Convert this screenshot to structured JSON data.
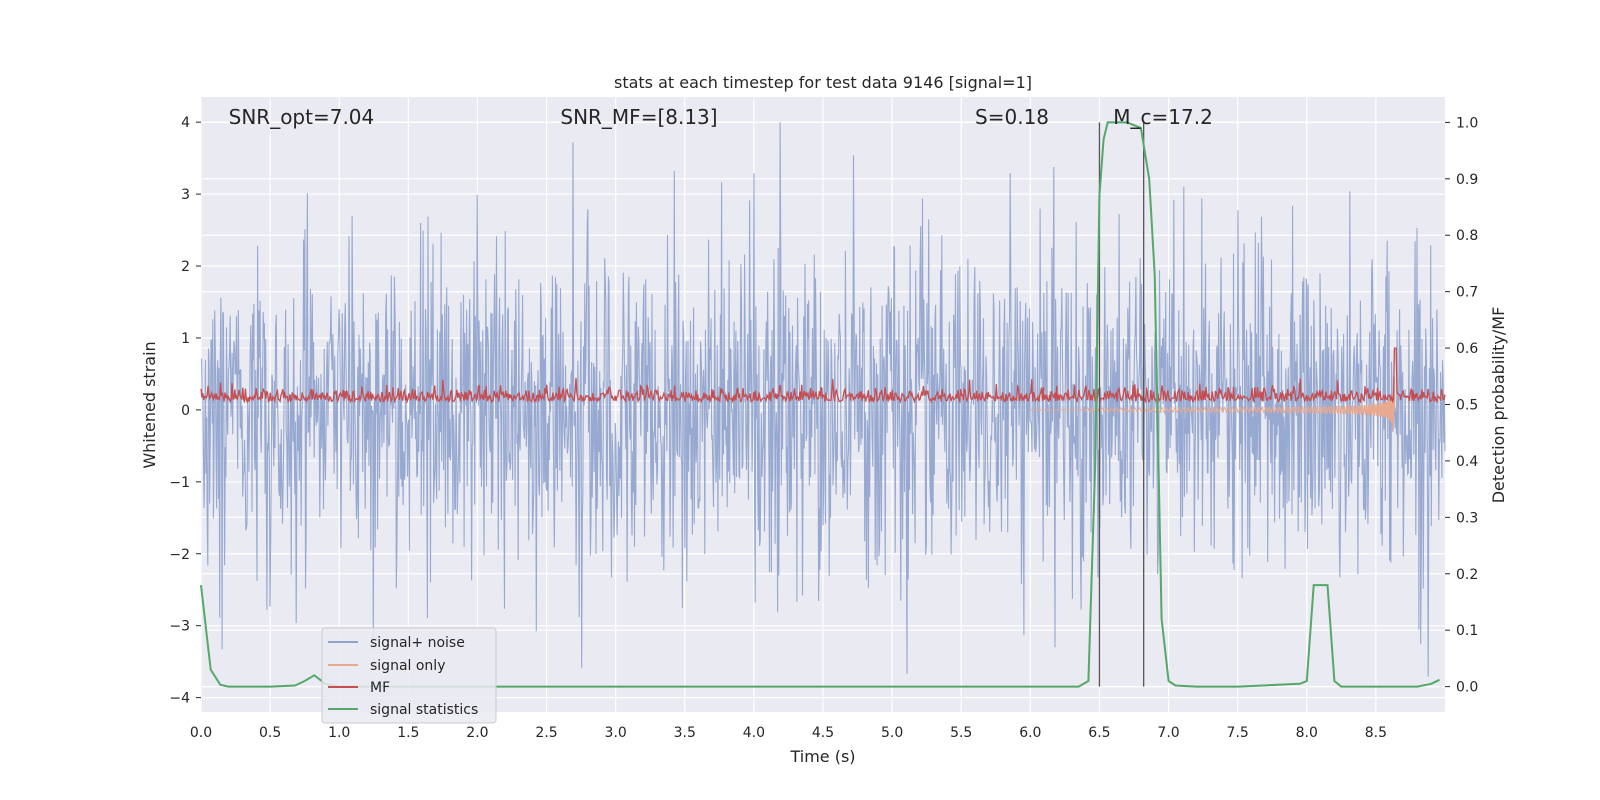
{
  "chart_data": {
    "type": "line",
    "title": "stats at each timestep for test data 9146 [signal=1]",
    "xlabel": "Time (s)",
    "ylabel_left": "Whitened strain",
    "ylabel_right": "Detection probability/MF",
    "xlim": [
      0.0,
      9.0
    ],
    "ylim_left": [
      -4.2,
      4.35
    ],
    "ylim_right": [
      -0.045,
      1.045
    ],
    "x_ticks": [
      0.0,
      0.5,
      1.0,
      1.5,
      2.0,
      2.5,
      3.0,
      3.5,
      4.0,
      4.5,
      5.0,
      5.5,
      6.0,
      6.5,
      7.0,
      7.5,
      8.0,
      8.5
    ],
    "x_tick_labels": [
      "0.0",
      "0.5",
      "1.0",
      "1.5",
      "2.0",
      "2.5",
      "3.0",
      "3.5",
      "4.0",
      "4.5",
      "5.0",
      "5.5",
      "6.0",
      "6.5",
      "7.0",
      "7.5",
      "8.0",
      "8.5"
    ],
    "y_left_ticks": [
      4,
      3,
      2,
      1,
      0,
      -1,
      -2,
      -3,
      -4
    ],
    "y_left_tick_labels": [
      "4",
      "3",
      "2",
      "1",
      "0",
      "−1",
      "−2",
      "−3",
      "−4"
    ],
    "y_right_ticks": [
      1.0,
      0.9,
      0.8,
      0.7,
      0.6,
      0.5,
      0.4,
      0.3,
      0.2,
      0.1,
      0.0
    ],
    "y_right_tick_labels": [
      "1.0",
      "0.9",
      "0.8",
      "0.7",
      "0.6",
      "0.5",
      "0.4",
      "0.3",
      "0.2",
      "0.1",
      "0.0"
    ],
    "annotations": [
      {
        "name": "snr-opt",
        "text": "SNR_opt=7.04",
        "x": 0.2
      },
      {
        "name": "snr-mf",
        "text": "SNR_MF=[8.13]",
        "x": 2.6
      },
      {
        "name": "s-stat",
        "text": "S=0.18",
        "x": 5.6
      },
      {
        "name": "mc",
        "text": "M_c=17.2",
        "x": 6.6
      }
    ],
    "vertical_lines": [
      6.5,
      6.82
    ],
    "legend": {
      "position": "lower-left",
      "entries": [
        {
          "label": "signal+ noise",
          "color": "#8ea2cc"
        },
        {
          "label": "signal only",
          "color": "#e8a98e"
        },
        {
          "label": "MF",
          "color": "#c44e52"
        },
        {
          "label": "signal statistics",
          "color": "#55a868"
        }
      ]
    },
    "series": [
      {
        "name": "signal statistics",
        "axis": "right",
        "color": "#55a868",
        "x": [
          0.0,
          0.07,
          0.14,
          0.2,
          0.3,
          0.5,
          0.68,
          0.75,
          0.82,
          0.9,
          1.0,
          2.0,
          3.0,
          4.0,
          5.0,
          6.0,
          6.35,
          6.42,
          6.47,
          6.5,
          6.53,
          6.56,
          6.6,
          6.7,
          6.8,
          6.86,
          6.9,
          6.95,
          7.0,
          7.05,
          7.2,
          7.5,
          7.95,
          8.0,
          8.05,
          8.1,
          8.15,
          8.2,
          8.25,
          8.5,
          8.8,
          8.9,
          8.96
        ],
        "values": [
          0.18,
          0.03,
          0.003,
          0.0,
          0.0,
          0.0,
          0.002,
          0.01,
          0.02,
          0.005,
          0.0,
          0.0,
          0.0,
          0.0,
          0.0,
          0.0,
          0.0,
          0.01,
          0.4,
          0.87,
          0.97,
          1.0,
          1.0,
          1.0,
          0.99,
          0.9,
          0.73,
          0.12,
          0.01,
          0.002,
          0.0,
          0.0,
          0.005,
          0.01,
          0.18,
          0.18,
          0.18,
          0.01,
          0.0,
          0.0,
          0.0,
          0.005,
          0.012
        ]
      }
    ]
  }
}
